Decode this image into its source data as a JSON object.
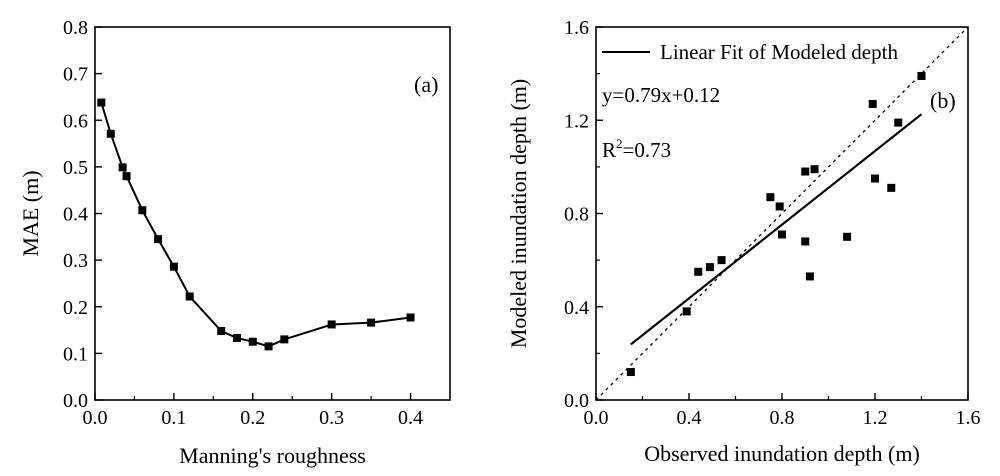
{
  "chart_data": [
    {
      "type": "line",
      "panel_label": "(a)",
      "title": "",
      "xlabel": "Manning's roughness",
      "ylabel": "MAE (m)",
      "xlim": [
        0.0,
        0.45
      ],
      "ylim": [
        0.0,
        0.8
      ],
      "xticks": [
        0.0,
        0.1,
        0.2,
        0.3,
        0.4
      ],
      "xtick_labels": [
        "0.0",
        "0.1",
        "0.2",
        "0.3",
        "0.4"
      ],
      "yticks": [
        0.0,
        0.1,
        0.2,
        0.3,
        0.4,
        0.5,
        0.6,
        0.7,
        0.8
      ],
      "ytick_labels": [
        "0.0",
        "0.1",
        "0.2",
        "0.3",
        "0.4",
        "0.5",
        "0.6",
        "0.7",
        "0.8"
      ],
      "series": [
        {
          "name": "MAE",
          "x": [
            0.008,
            0.02,
            0.035,
            0.04,
            0.06,
            0.08,
            0.1,
            0.12,
            0.16,
            0.18,
            0.2,
            0.22,
            0.24,
            0.3,
            0.35,
            0.4
          ],
          "y": [
            0.638,
            0.571,
            0.499,
            0.48,
            0.407,
            0.345,
            0.286,
            0.222,
            0.148,
            0.133,
            0.125,
            0.115,
            0.13,
            0.162,
            0.166,
            0.177
          ]
        }
      ]
    },
    {
      "type": "scatter",
      "panel_label": "(b)",
      "title": "",
      "xlabel": "Observed inundation depth (m)",
      "ylabel": "Modeled inundation depth (m)",
      "xlim": [
        0.0,
        1.6
      ],
      "ylim": [
        0.0,
        1.6
      ],
      "xticks": [
        0.0,
        0.4,
        0.8,
        1.2,
        1.6
      ],
      "xtick_labels": [
        "0.0",
        "0.4",
        "0.8",
        "1.2",
        "1.6"
      ],
      "yticks": [
        0.0,
        0.4,
        0.8,
        1.2,
        1.6
      ],
      "ytick_labels": [
        "0.0",
        "0.4",
        "0.8",
        "1.2",
        "1.6"
      ],
      "legend": "Linear Fit of Modeled depth",
      "equation": "y=0.79x+0.12",
      "r2_prefix": "R",
      "r2_sup": "2",
      "r2_value": "=0.73",
      "fit": {
        "slope": 0.79,
        "intercept": 0.12,
        "x_range": [
          0.15,
          1.4
        ]
      },
      "one_to_one_line": true,
      "points": {
        "x": [
          0.15,
          0.39,
          0.44,
          0.49,
          0.54,
          0.75,
          0.79,
          0.8,
          0.9,
          0.9,
          0.92,
          0.94,
          1.08,
          1.19,
          1.2,
          1.27,
          1.3,
          1.4
        ],
        "y": [
          0.12,
          0.38,
          0.55,
          0.57,
          0.6,
          0.87,
          0.83,
          0.71,
          0.98,
          0.68,
          0.53,
          0.99,
          0.7,
          1.27,
          0.95,
          0.91,
          1.19,
          1.39
        ]
      }
    }
  ]
}
